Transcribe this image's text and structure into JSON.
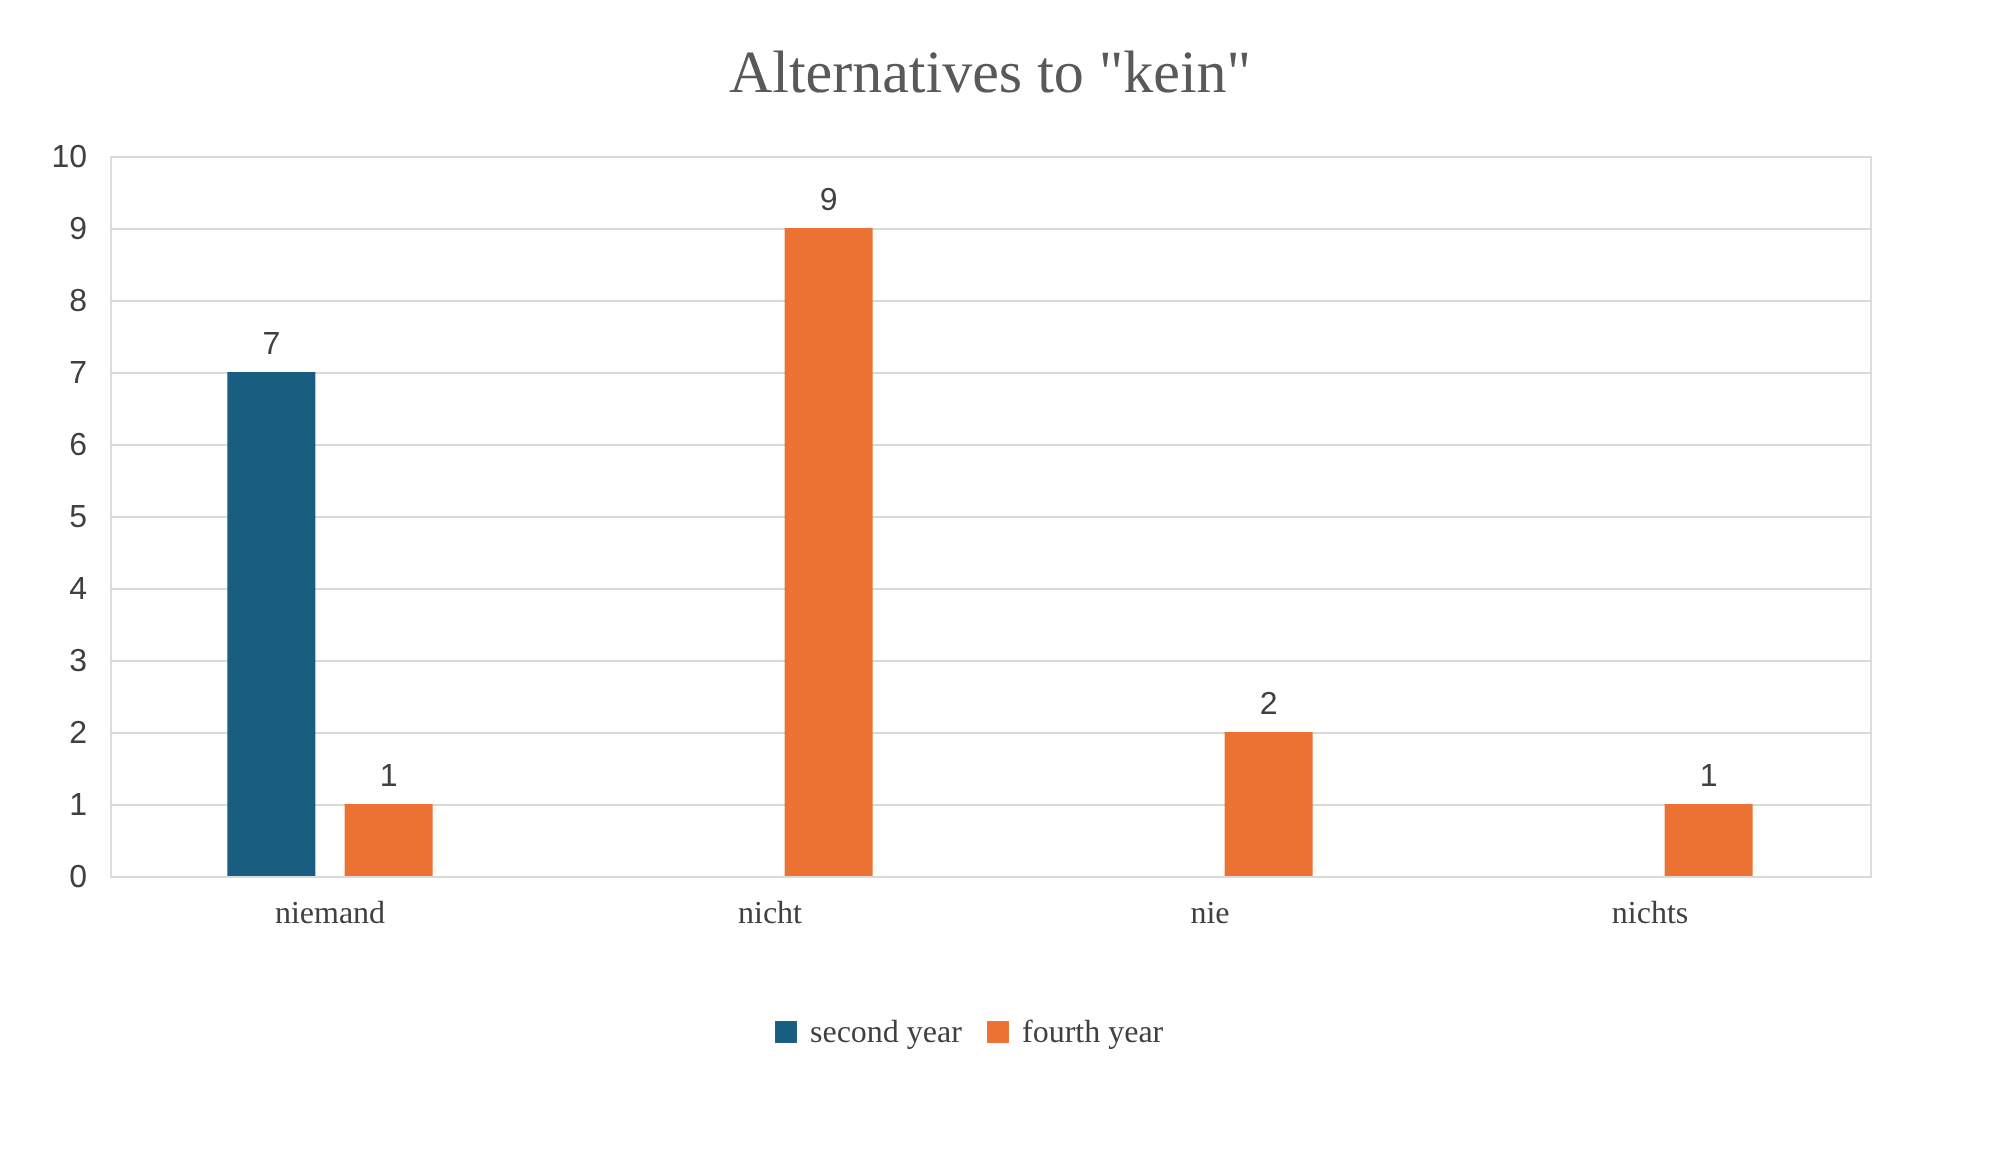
{
  "chart_data": {
    "type": "bar",
    "title": "Alternatives to \"kein\"",
    "categories": [
      "niemand",
      "nicht",
      "nie",
      "nichts"
    ],
    "series": [
      {
        "name": "second year",
        "color": "#175e80",
        "values": [
          7,
          null,
          null,
          null
        ]
      },
      {
        "name": "fourth year",
        "color": "#ec7232",
        "values": [
          1,
          9,
          2,
          1
        ]
      }
    ],
    "ylim": [
      0,
      10
    ],
    "yticks": [
      0,
      1,
      2,
      3,
      4,
      5,
      6,
      7,
      8,
      9,
      10
    ],
    "grid": "y",
    "legend": "bottom",
    "data_labels": true
  }
}
